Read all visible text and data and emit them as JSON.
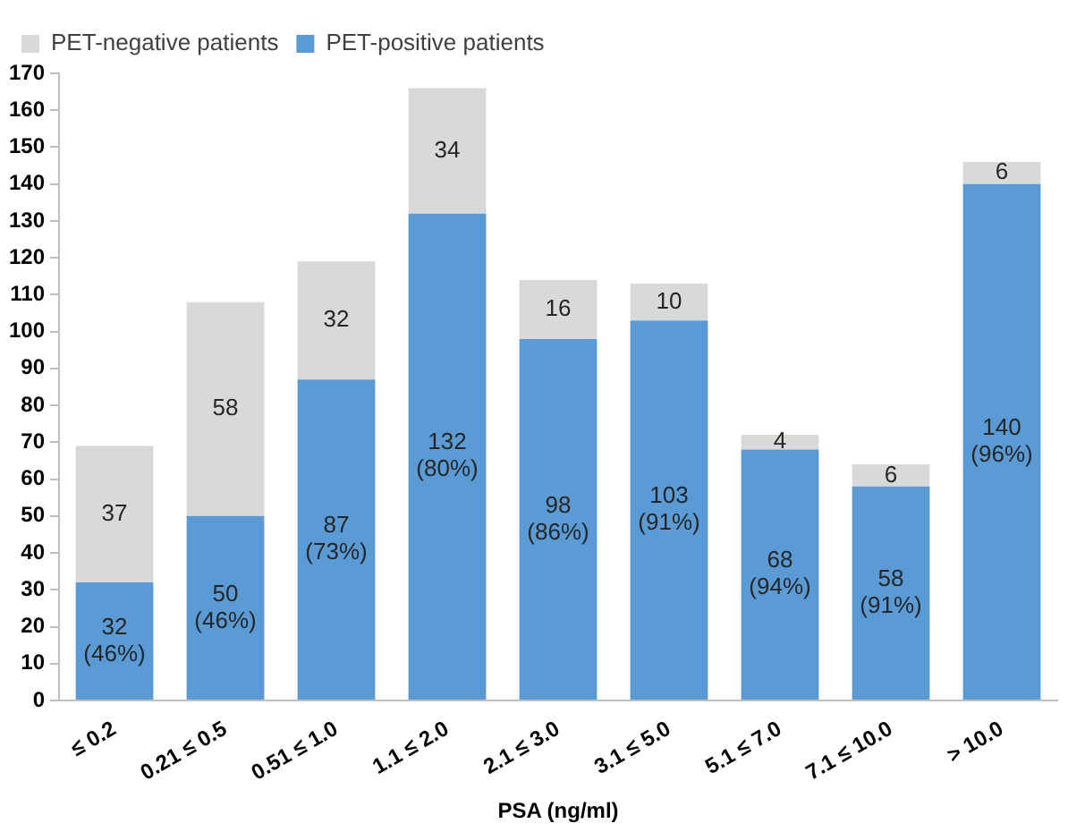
{
  "chart_data": {
    "type": "bar",
    "stacked": true,
    "xlabel": "PSA (ng/ml)",
    "categories": [
      "≤ 0.2",
      "0.21 ≤ 0.5",
      "0.51 ≤ 1.0",
      "1.1 ≤ 2.0",
      "2.1 ≤ 3.0",
      "3.1 ≤ 5.0",
      "5.1 ≤ 7.0",
      "7.1 ≤ 10.0",
      "> 10.0"
    ],
    "series": [
      {
        "name": "PET-positive patients",
        "color": "#5b9bd5",
        "values": [
          32,
          50,
          87,
          132,
          98,
          103,
          68,
          58,
          140
        ],
        "value_labels": [
          "32 (46%)",
          "50 (46%)",
          "87 (73%)",
          "132 (80%)",
          "98 (86%)",
          "103 (91%)",
          "68 (94%)",
          "58 (91%)",
          "140 (96%)"
        ]
      },
      {
        "name": "PET-negative patients",
        "color": "#d9d9d9",
        "values": [
          37,
          58,
          32,
          34,
          16,
          10,
          4,
          6,
          6
        ],
        "value_labels": [
          "37",
          "58",
          "32",
          "34",
          "16",
          "10",
          "4",
          "6",
          "6"
        ]
      }
    ],
    "ylim": [
      0,
      170
    ],
    "yticks": [
      0,
      10,
      20,
      30,
      40,
      50,
      60,
      70,
      80,
      90,
      100,
      110,
      120,
      130,
      140,
      150,
      160,
      170
    ],
    "grid": false,
    "legend": "top left"
  }
}
